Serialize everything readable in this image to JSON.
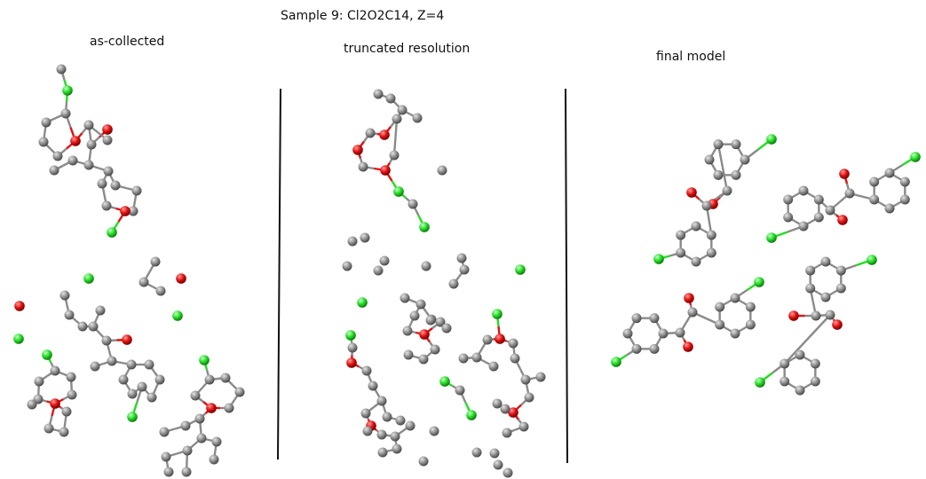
{
  "title": "Sample 9: Cl2O2C14, Z=4",
  "panels": [
    {
      "id": "as-collected",
      "label": "as-collected"
    },
    {
      "id": "truncated",
      "label": "truncated resolution"
    },
    {
      "id": "final",
      "label": "final model"
    }
  ],
  "atom_colors": {
    "C": "#8e8e8e",
    "O": "#e01010",
    "Cl": "#22dd22"
  },
  "bond_color": "#8a8a8a",
  "divider_color": "#111111"
}
